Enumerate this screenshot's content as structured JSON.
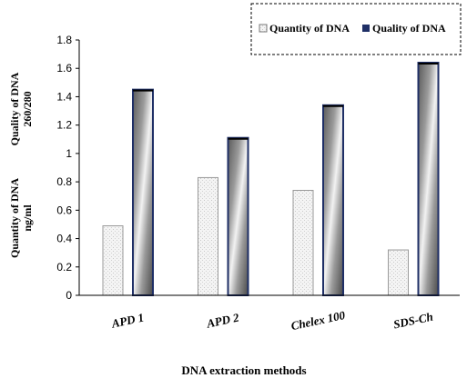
{
  "chart_data": {
    "type": "bar",
    "categories": [
      "APD 1",
      "APD 2",
      "Chelex 100",
      "SDS-Ch"
    ],
    "series": [
      {
        "name": "Quantity of DNA",
        "values": [
          0.49,
          0.83,
          0.74,
          0.32
        ],
        "fill": "#efefef",
        "stroke": "#9a9a9a"
      },
      {
        "name": "Quality of DNA",
        "values": [
          1.45,
          1.11,
          1.34,
          1.64
        ],
        "fill": "#8c8c8c",
        "stroke": "#1f2f66"
      }
    ],
    "ylim": [
      0,
      1.8
    ],
    "yticks": [
      "0",
      "0.2",
      "0.4",
      "0.6",
      "0.8",
      "1",
      "1.2",
      "1.4",
      "1.6",
      "1.8"
    ],
    "ylabel_top": [
      "Quality of DNA",
      "260/280"
    ],
    "ylabel_bottom": [
      "Quantity of DNA",
      "ng/ml"
    ],
    "xlabel": "DNA extraction methods",
    "legend_position": "top-right",
    "grid": false
  }
}
